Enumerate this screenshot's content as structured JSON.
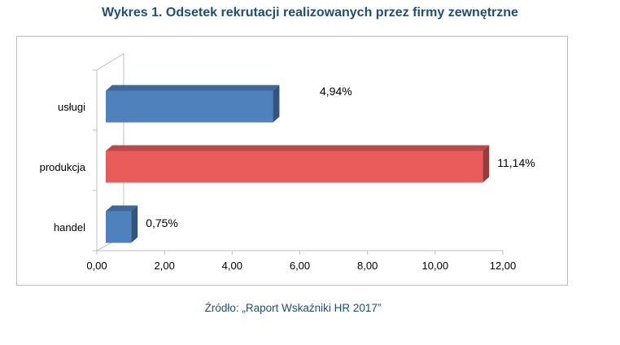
{
  "title": "Wykres 1. Odsetek rekrutacji realizowanych przez firmy zewnętrzne",
  "source": "Źródło: „Raport Wskaźniki HR 2017”",
  "colors": {
    "title": "#1f4e79",
    "blue": "#4f81bd",
    "red": "#e85c5c",
    "axis": "#bfbfbf"
  },
  "chart_data": {
    "type": "bar",
    "orientation": "horizontal",
    "categories": [
      "usługi",
      "produkcja",
      "handel"
    ],
    "values": [
      4.94,
      11.14,
      0.75
    ],
    "data_labels": [
      "4,94%",
      "11,14%",
      "0,75%"
    ],
    "bar_colors": [
      "#4f81bd",
      "#e85c5c",
      "#4f81bd"
    ],
    "title": "Wykres 1. Odsetek rekrutacji realizowanych przez firmy zewnętrzne",
    "xlabel": "",
    "ylabel": "",
    "xlim": [
      0,
      12
    ],
    "xticks": [
      "0,00",
      "2,00",
      "4,00",
      "6,00",
      "8,00",
      "10,00",
      "12,00"
    ],
    "grid": false,
    "legend": "none",
    "style": "3d"
  }
}
